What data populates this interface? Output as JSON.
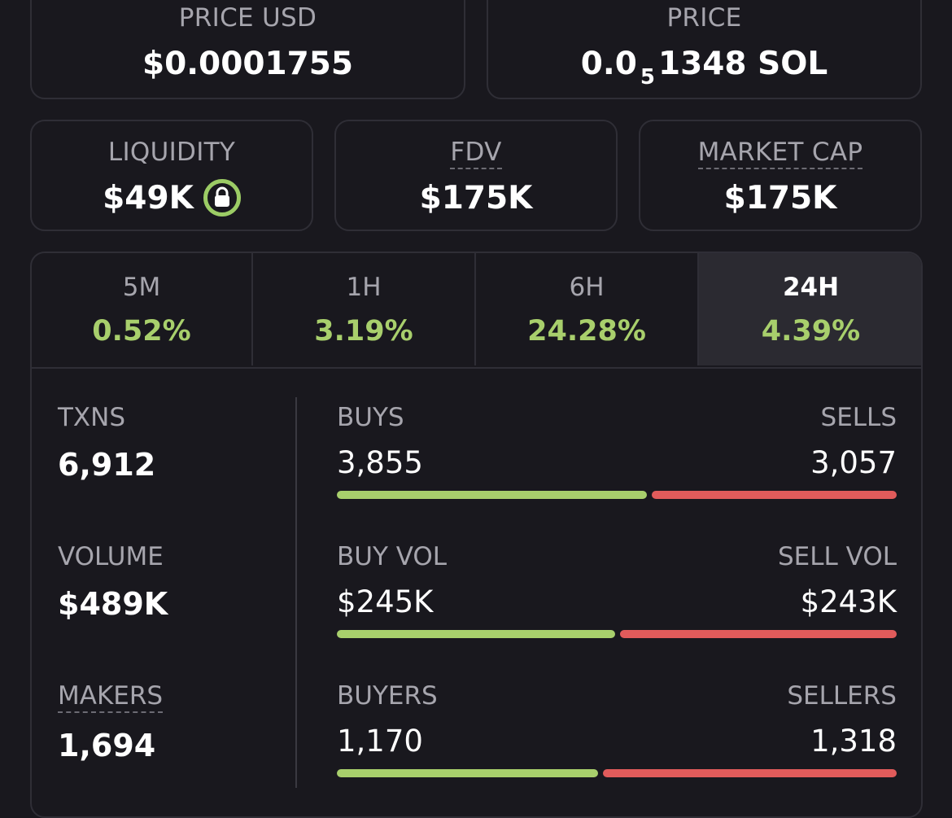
{
  "price_usd": {
    "label": "PRICE USD",
    "value": "$0.0001755"
  },
  "price_native": {
    "prefix": "0.0",
    "zeros": "5",
    "rest": "1348 SOL",
    "label": "PRICE"
  },
  "liquidity": {
    "label": "LIQUIDITY",
    "value": "$49K",
    "icon": "lock-icon"
  },
  "fdv": {
    "label": "FDV",
    "value": "$175K"
  },
  "market_cap": {
    "label": "MARKET CAP",
    "value": "$175K"
  },
  "tabs": [
    {
      "label": "5M",
      "change": "0.52%"
    },
    {
      "label": "1H",
      "change": "3.19%"
    },
    {
      "label": "6H",
      "change": "24.28%"
    },
    {
      "label": "24H",
      "change": "4.39%",
      "active": true
    }
  ],
  "metrics": {
    "txns": {
      "label": "TXNS",
      "value": "6,912"
    },
    "volume": {
      "label": "VOLUME",
      "value": "$489K"
    },
    "makers": {
      "label": "MAKERS",
      "value": "1,694"
    }
  },
  "rows": {
    "buys_sells": {
      "left_label": "BUYS",
      "left_value": "3,855",
      "right_label": "SELLS",
      "right_value": "3,057",
      "buy_fraction": 0.558
    },
    "vol": {
      "left_label": "BUY VOL",
      "left_value": "$245K",
      "right_label": "SELL VOL",
      "right_value": "$243K",
      "buy_fraction": 0.502
    },
    "buyers_sellers": {
      "left_label": "BUYERS",
      "left_value": "1,170",
      "right_label": "SELLERS",
      "right_value": "1,318",
      "buy_fraction": 0.47
    }
  },
  "colors": {
    "positive": "#a8cf6c",
    "negative": "#e15b5b",
    "background": "#19181e",
    "border": "#2f2e36"
  }
}
